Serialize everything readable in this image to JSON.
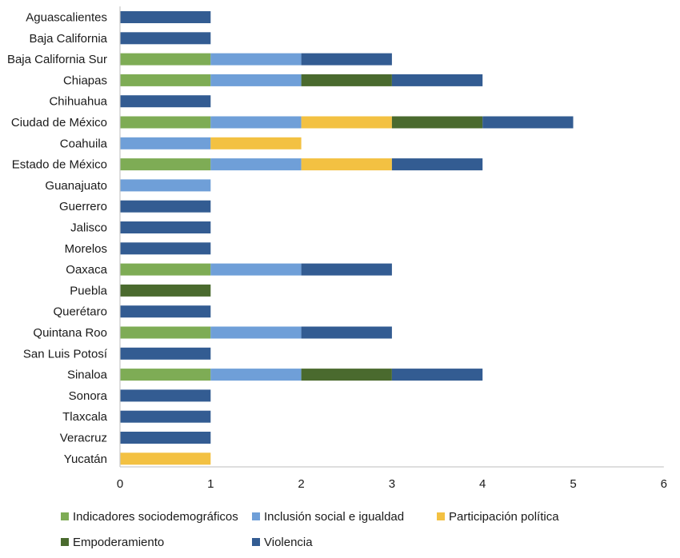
{
  "chart_data": {
    "type": "bar",
    "orientation": "horizontal",
    "stacked": true,
    "title": "",
    "xlabel": "",
    "ylabel": "",
    "xlim": [
      0,
      6
    ],
    "xticks": [
      "0",
      "1",
      "2",
      "3",
      "4",
      "5",
      "6"
    ],
    "grid": false,
    "legend_position": "bottom",
    "categories": [
      "Aguascalientes",
      "Baja California",
      "Baja California Sur",
      "Chiapas",
      "Chihuahua",
      "Ciudad de México",
      "Coahuila",
      "Estado de México",
      "Guanajuato",
      "Guerrero",
      "Jalisco",
      "Morelos",
      "Oaxaca",
      "Puebla",
      "Querétaro",
      "Quintana Roo",
      "San Luis Potosí",
      "Sinaloa",
      "Sonora",
      "Tlaxcala",
      "Veracruz",
      "Yucatán"
    ],
    "series": [
      {
        "name": "Indicadores sociodemográficos",
        "color": "#7eac55",
        "values": [
          0,
          0,
          1,
          1,
          0,
          1,
          0,
          1,
          0,
          0,
          0,
          0,
          1,
          0,
          0,
          1,
          0,
          1,
          0,
          0,
          0,
          0
        ]
      },
      {
        "name": "Inclusión social e igualdad",
        "color": "#6f9fd8",
        "values": [
          0,
          0,
          1,
          1,
          0,
          1,
          1,
          1,
          1,
          0,
          0,
          0,
          1,
          0,
          0,
          1,
          0,
          1,
          0,
          0,
          0,
          0
        ]
      },
      {
        "name": "Participación política",
        "color": "#f3c142",
        "values": [
          0,
          0,
          0,
          0,
          0,
          1,
          1,
          1,
          0,
          0,
          0,
          0,
          0,
          0,
          0,
          0,
          0,
          0,
          0,
          0,
          0,
          1
        ]
      },
      {
        "name": "Empoderamiento",
        "color": "#4a6a2e",
        "values": [
          0,
          0,
          0,
          1,
          0,
          1,
          0,
          0,
          0,
          0,
          0,
          0,
          0,
          1,
          0,
          0,
          0,
          1,
          0,
          0,
          0,
          0
        ]
      },
      {
        "name": "Violencia",
        "color": "#335c92",
        "values": [
          1,
          1,
          1,
          1,
          1,
          1,
          0,
          1,
          0,
          1,
          1,
          1,
          1,
          0,
          1,
          1,
          1,
          1,
          1,
          1,
          1,
          0
        ]
      }
    ]
  }
}
